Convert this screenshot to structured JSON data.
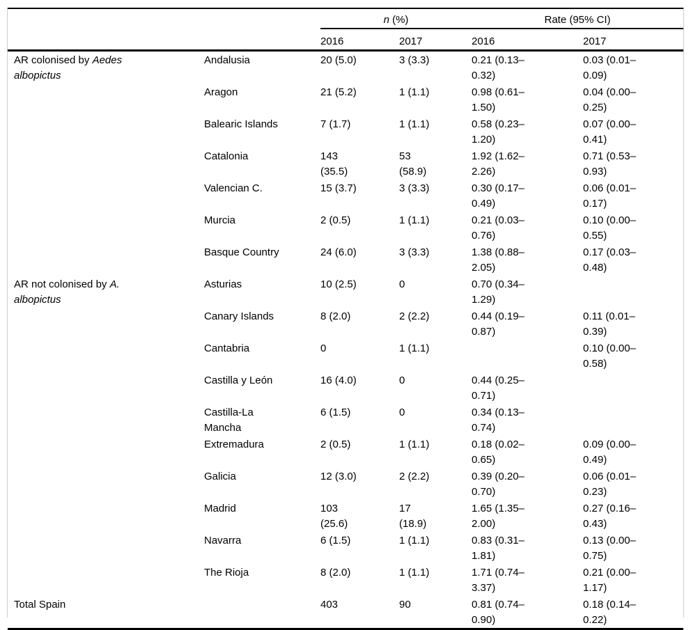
{
  "table": {
    "header": {
      "n_italic": "n",
      "n_rest": " (%)",
      "rate": "Rate (95% CI)",
      "years": [
        "2016",
        "2017",
        "2016",
        "2017"
      ]
    },
    "groups": [
      {
        "label_normal": "AR colonised by ",
        "label_italic1": "Aedes",
        "label_italic2": "albopictus",
        "rows": [
          {
            "region": "Andalusia",
            "n2016": "20 (5.0)",
            "n2017": "3 (3.3)",
            "rate2016": "0.21 (0.13–\n0.32)",
            "rate2017": "0.03 (0.01–\n0.09)"
          },
          {
            "region": "Aragon",
            "n2016": "21 (5.2)",
            "n2017": "1 (1.1)",
            "rate2016": "0.98 (0.61–\n1.50)",
            "rate2017": "0.04 (0.00–\n0.25)"
          },
          {
            "region": "Balearic Islands",
            "n2016": "7 (1.7)",
            "n2017": "1 (1.1)",
            "rate2016": "0.58 (0.23–\n1.20)",
            "rate2017": "0.07 (0.00–\n0.41)"
          },
          {
            "region": "Catalonia",
            "n2016": "143\n(35.5)",
            "n2017": "53\n(58.9)",
            "rate2016": "1.92 (1.62–\n2.26)",
            "rate2017": "0.71 (0.53–\n0.93)"
          },
          {
            "region": "Valencian C.",
            "n2016": "15 (3.7)",
            "n2017": "3 (3.3)",
            "rate2016": "0.30 (0.17–\n0.49)",
            "rate2017": "0.06 (0.01–\n0.17)"
          },
          {
            "region": "Murcia",
            "n2016": "2 (0.5)",
            "n2017": "1 (1.1)",
            "rate2016": "0.21 (0.03–\n0.76)",
            "rate2017": "0.10 (0.00–\n0.55)"
          },
          {
            "region": "Basque Country",
            "n2016": "24 (6.0)",
            "n2017": "3 (3.3)",
            "rate2016": "1.38 (0.88–\n2.05)",
            "rate2017": "0.17 (0.03–\n0.48)"
          }
        ]
      },
      {
        "label_normal": "AR not colonised by ",
        "label_italic1": "A.",
        "label_italic2": "albopictus",
        "rows": [
          {
            "region": "Asturias",
            "n2016": "10 (2.5)",
            "n2017": "0",
            "rate2016": "0.70 (0.34–\n1.29)",
            "rate2017": ""
          },
          {
            "region": "Canary Islands",
            "n2016": "8 (2.0)",
            "n2017": "2 (2.2)",
            "rate2016": "0.44 (0.19–\n0.87)",
            "rate2017": "0.11 (0.01–\n0.39)"
          },
          {
            "region": "Cantabria",
            "n2016": "0",
            "n2017": "1 (1.1)",
            "rate2016": "",
            "rate2017": "0.10 (0.00–\n0.58)"
          },
          {
            "region": "Castilla y León",
            "n2016": "16 (4.0)",
            "n2017": "0",
            "rate2016": "0.44 (0.25–\n0.71)",
            "rate2017": ""
          },
          {
            "region": "Castilla-La\nMancha",
            "n2016": "6 (1.5)",
            "n2017": "0",
            "rate2016": "0.34 (0.13–\n0.74)",
            "rate2017": ""
          },
          {
            "region": "Extremadura",
            "n2016": "2 (0.5)",
            "n2017": "1 (1.1)",
            "rate2016": "0.18 (0.02–\n0.65)",
            "rate2017": "0.09 (0.00–\n0.49)"
          },
          {
            "region": "Galicia",
            "n2016": "12 (3.0)",
            "n2017": "2 (2.2)",
            "rate2016": "0.39 (0.20–\n0.70)",
            "rate2017": "0.06 (0.01–\n0.23)"
          },
          {
            "region": "Madrid",
            "n2016": "103\n(25.6)",
            "n2017": "17\n(18.9)",
            "rate2016": "1.65 (1.35–\n2.00)",
            "rate2017": "0.27 (0.16–\n0.43)"
          },
          {
            "region": "Navarra",
            "n2016": "6 (1.5)",
            "n2017": "1 (1.1)",
            "rate2016": "0.83 (0.31–\n1.81)",
            "rate2017": "0.13 (0.00–\n0.75)"
          },
          {
            "region": "The Rioja",
            "n2016": "8 (2.0)",
            "n2017": "1 (1.1)",
            "rate2016": "1.71 (0.74–\n3.37)",
            "rate2017": "0.21 (0.00–\n1.17)"
          }
        ]
      }
    ],
    "total": {
      "label": "Total Spain",
      "n2016": "403",
      "n2017": "90",
      "rate2016": "0.81 (0.74–\n0.90)",
      "rate2017": "0.18 (0.14–\n0.22)"
    }
  }
}
